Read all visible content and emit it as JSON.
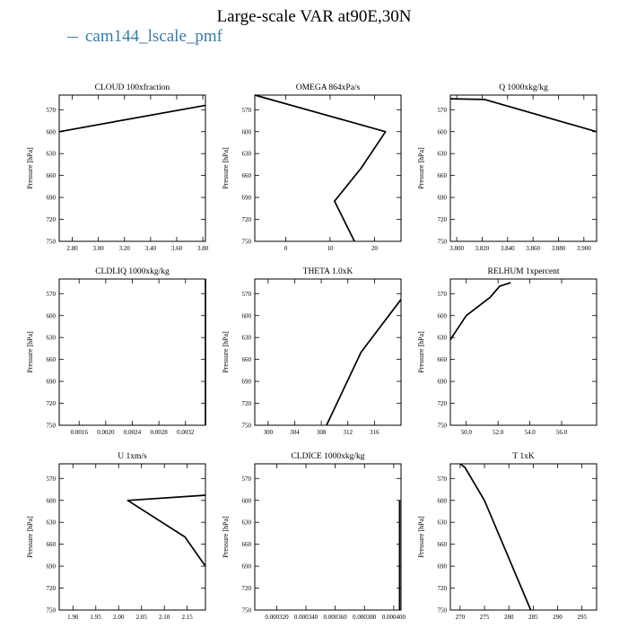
{
  "figure": {
    "title": "Large-scale VAR at90E,30N",
    "legend": [
      {
        "name": "cam144_lscale_pmf",
        "color": "#3a7ca5"
      }
    ]
  },
  "chart_data": [
    {
      "type": "line",
      "title": "CLOUD  100xfraction",
      "ylabel": "Pressure [hPa]",
      "ylim": [
        750,
        550
      ],
      "yticks": [
        570,
        600,
        630,
        660,
        690,
        720,
        750
      ],
      "xlim": [
        2.7,
        3.82
      ],
      "xticks": [
        2.8,
        3.0,
        3.2,
        3.4,
        3.6,
        3.8
      ],
      "xticklabels": [
        "2.80",
        "3.00",
        "3.20",
        "3.40",
        "3.60",
        "3.80"
      ],
      "series": [
        {
          "x": [
            3.82,
            2.7
          ],
          "y": [
            564,
            600
          ]
        }
      ]
    },
    {
      "type": "line",
      "title": "OMEGA  864xPa/s",
      "ylabel": "Pressure [hPa]",
      "ylim": [
        750,
        550
      ],
      "yticks": [
        570,
        600,
        630,
        660,
        690,
        720,
        750
      ],
      "xlim": [
        -7,
        26
      ],
      "xticks": [
        0,
        10,
        20
      ],
      "xticklabels": [
        "0",
        "10",
        "20"
      ],
      "series": [
        {
          "x": [
            -7,
            22.5,
            17,
            11,
            15.5
          ],
          "y": [
            550,
            600,
            650,
            695,
            750
          ]
        }
      ]
    },
    {
      "type": "line",
      "title": "Q  1000xkg/kg",
      "ylabel": "Pressure [hPa]",
      "ylim": [
        750,
        550
      ],
      "yticks": [
        570,
        600,
        630,
        660,
        690,
        720,
        750
      ],
      "xlim": [
        3.795,
        3.91
      ],
      "xticks": [
        3.8,
        3.82,
        3.84,
        3.86,
        3.88,
        3.9
      ],
      "xticklabels": [
        "3.800",
        "3.820",
        "3.840",
        "3.860",
        "3.880",
        "3.900"
      ],
      "series": [
        {
          "x": [
            3.795,
            3.822,
            3.91
          ],
          "y": [
            555,
            556,
            600
          ]
        }
      ]
    },
    {
      "type": "line",
      "title": "CLDLIQ  1000xkg/kg",
      "ylabel": "Pressure [hPa]",
      "ylim": [
        750,
        550
      ],
      "yticks": [
        570,
        600,
        630,
        660,
        690,
        720,
        750
      ],
      "xlim": [
        0.0013,
        0.0035
      ],
      "xticks": [
        0.0016,
        0.002,
        0.0024,
        0.0028,
        0.0032
      ],
      "xticklabels": [
        "0.0016",
        "0.0020",
        "0.0024",
        "0.0028",
        "0.0032"
      ],
      "series": [
        {
          "x": [
            0.0035,
            0.0035
          ],
          "y": [
            550,
            750
          ]
        }
      ]
    },
    {
      "type": "line",
      "title": "THETA  1.0xK",
      "ylabel": "Pressure [hPa]",
      "ylim": [
        750,
        550
      ],
      "yticks": [
        570,
        600,
        630,
        660,
        690,
        720,
        750
      ],
      "xlim": [
        298,
        320
      ],
      "xticks": [
        300,
        304,
        308,
        312,
        316
      ],
      "xticklabels": [
        "300",
        "304",
        "308",
        "312",
        "316"
      ],
      "series": [
        {
          "x": [
            320,
            314,
            308.8
          ],
          "y": [
            578,
            650,
            750
          ]
        }
      ]
    },
    {
      "type": "line",
      "title": "RELHUM  1xpercent",
      "ylabel": "Pressure [hPa]",
      "ylim": [
        750,
        550
      ],
      "yticks": [
        570,
        600,
        630,
        660,
        690,
        720,
        750
      ],
      "xlim": [
        49,
        58.2
      ],
      "xticks": [
        50,
        52,
        54,
        56
      ],
      "xticklabels": [
        "50.0",
        "52.0",
        "54.0",
        "56.0"
      ],
      "series": [
        {
          "x": [
            49,
            50,
            51.5,
            52.1,
            52.8
          ],
          "y": [
            633,
            600,
            575,
            560,
            555
          ]
        }
      ]
    },
    {
      "type": "line",
      "title": "U  1xm/s",
      "ylabel": "Pressure [hPa]",
      "ylim": [
        750,
        550
      ],
      "yticks": [
        570,
        600,
        630,
        660,
        690,
        720,
        750
      ],
      "xlim": [
        1.87,
        2.19
      ],
      "xticks": [
        1.9,
        1.95,
        2.0,
        2.05,
        2.1,
        2.15
      ],
      "xticklabels": [
        "1.90",
        "1.95",
        "2.00",
        "2.05",
        "2.10",
        "2.15"
      ],
      "series": [
        {
          "x": [
            2.19,
            2.02,
            2.145,
            2.19
          ],
          "y": [
            593,
            600,
            650,
            690
          ]
        }
      ]
    },
    {
      "type": "line",
      "title": "CLDICE  1000xkg/kg",
      "ylabel": "Pressure [hPa]",
      "ylim": [
        750,
        550
      ],
      "yticks": [
        570,
        600,
        630,
        660,
        690,
        720,
        750
      ],
      "xlim": [
        0.000305,
        0.000405
      ],
      "xticks": [
        0.00032,
        0.00034,
        0.00036,
        0.00038,
        0.0004
      ],
      "xticklabels": [
        "0.000320",
        "0.000340",
        "0.000360",
        "0.000380",
        "0.000400"
      ],
      "series": [
        {
          "x": [
            0.000404,
            0.000404
          ],
          "y": [
            600,
            750
          ]
        }
      ]
    },
    {
      "type": "line",
      "title": "T  1xK",
      "ylabel": "Pressure [hPa]",
      "ylim": [
        750,
        550
      ],
      "yticks": [
        570,
        600,
        630,
        660,
        690,
        720,
        750
      ],
      "xlim": [
        268,
        298
      ],
      "xticks": [
        270,
        275,
        280,
        285,
        290,
        295
      ],
      "xticklabels": [
        "270",
        "275",
        "280",
        "285",
        "290",
        "295"
      ],
      "series": [
        {
          "x": [
            270,
            271,
            275,
            284.5
          ],
          "y": [
            550,
            555,
            600,
            750
          ]
        }
      ]
    }
  ]
}
